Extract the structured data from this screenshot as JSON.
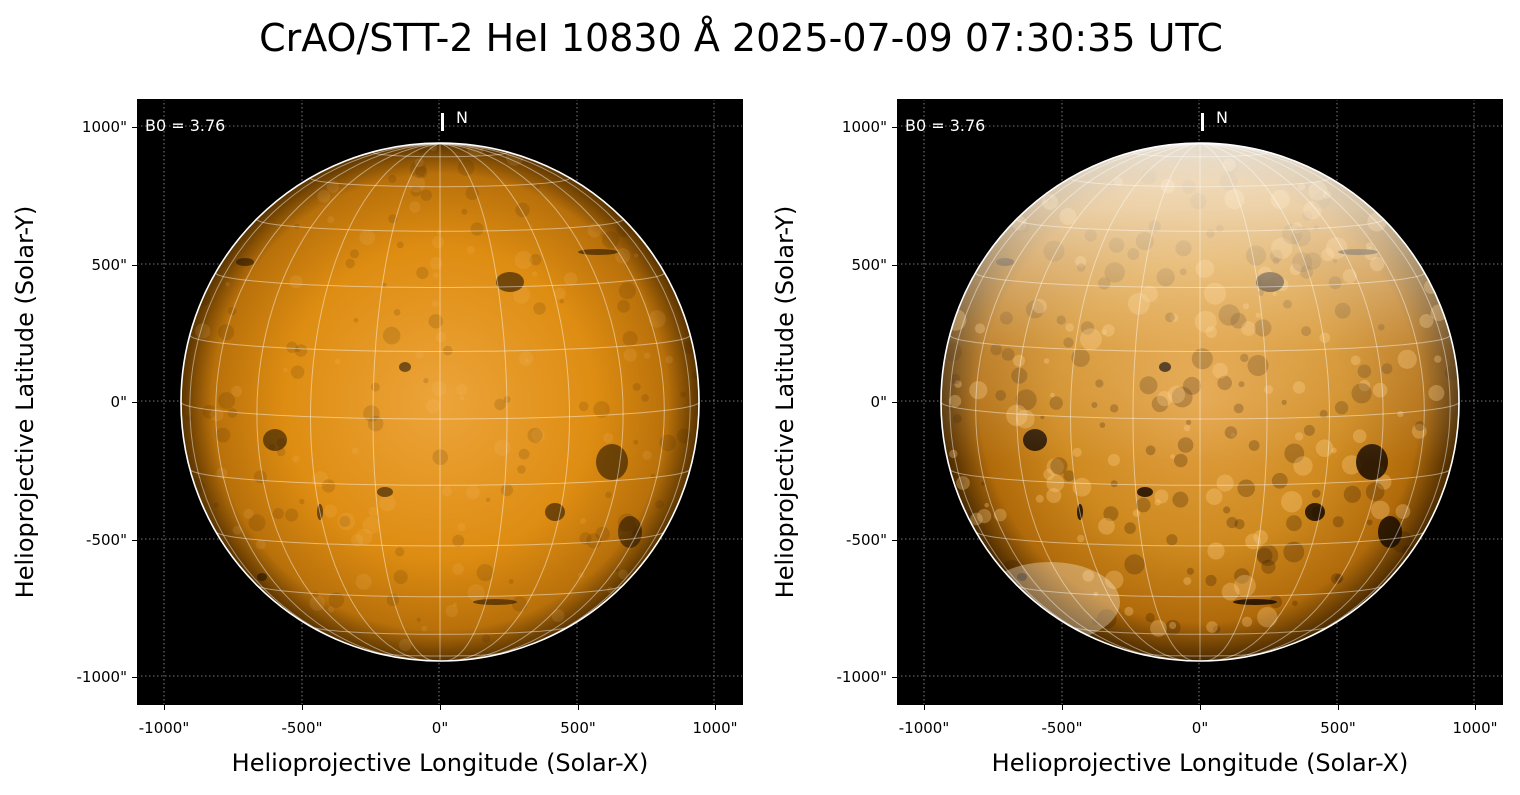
{
  "figure": {
    "title": "CrAO/STT-2 HeI 10830 Å 2025-07-09 07:30:35 UTC",
    "colors": {
      "background": "#000000",
      "limb": "#ffffff",
      "grid": "#ffffff",
      "disk": "#e08a0a"
    }
  },
  "panels": [
    {
      "xlabel": "Helioprojective Longitude (Solar-X)",
      "ylabel": "Helioprojective Latitude (Solar-Y)",
      "xticks": [
        "-1000\"",
        "-500\"",
        "0\"",
        "500\"",
        "1000\""
      ],
      "yticks": [
        "1000\"",
        "500\"",
        "0\"",
        "-500\"",
        "-1000\""
      ],
      "b0_label": "B0 = 3.76",
      "north_label": "N",
      "style": "normal contrast"
    },
    {
      "xlabel": "Helioprojective Longitude (Solar-X)",
      "ylabel": "Helioprojective Latitude (Solar-Y)",
      "xticks": [
        "-1000\"",
        "-500\"",
        "0\"",
        "500\"",
        "1000\""
      ],
      "yticks": [
        "1000\"",
        "500\"",
        "0\"",
        "-500\"",
        "-1000\""
      ],
      "b0_label": "B0 = 3.76",
      "north_label": "N",
      "style": "enhanced contrast"
    }
  ]
}
